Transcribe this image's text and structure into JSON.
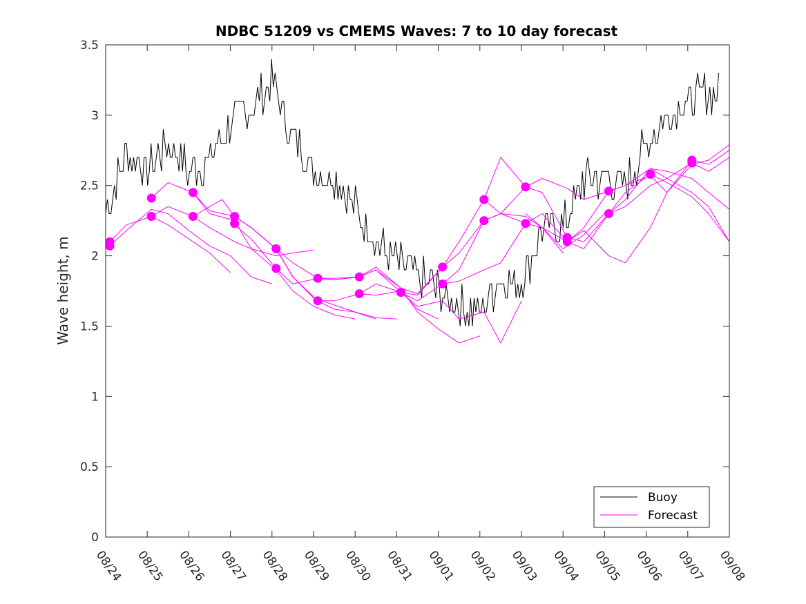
{
  "chart_data": {
    "type": "line",
    "title": "NDBC 51209 vs CMEMS Waves: 7 to 10 day forecast",
    "xlabel": "",
    "ylabel": "Wave height, m",
    "ylim": [
      0,
      3.5
    ],
    "yticks": [
      0,
      0.5,
      1,
      1.5,
      2,
      2.5,
      3,
      3.5
    ],
    "ytick_labels": [
      "0",
      "0.5",
      "1",
      "1.5",
      "2",
      "2.5",
      "3",
      "3.5"
    ],
    "xlim": [
      0,
      15
    ],
    "xtick_labels": [
      "08/24",
      "08/25",
      "08/26",
      "08/27",
      "08/28",
      "08/29",
      "08/30",
      "08/31",
      "09/01",
      "09/02",
      "09/03",
      "09/04",
      "09/05",
      "09/06",
      "09/07",
      "09/08"
    ],
    "legend": {
      "position": "bottom-right",
      "entries": [
        {
          "label": "Buoy",
          "color": "#000000"
        },
        {
          "label": "Forecast",
          "color": "#ff00ff"
        }
      ]
    },
    "colors": {
      "buoy": "#000000",
      "forecast": "#ff00ff",
      "axes": "#262626"
    },
    "series": [
      {
        "name": "Buoy",
        "x": [
          0,
          0.5,
          1,
          1.5,
          2,
          2.5,
          3,
          3.5,
          4,
          4.5,
          5,
          5.5,
          6,
          6.5,
          7,
          7.5,
          8,
          8.5,
          9,
          9.5,
          10,
          10.5,
          11,
          11.5,
          12,
          12.5,
          13,
          13.5,
          14,
          14.5
        ],
        "y": [
          2.3,
          2.75,
          2.6,
          2.8,
          2.6,
          2.7,
          2.95,
          3.05,
          3.25,
          2.85,
          2.6,
          2.55,
          2.35,
          2.1,
          1.95,
          1.85,
          1.75,
          1.65,
          1.6,
          1.85,
          1.8,
          2.2,
          2.2,
          2.55,
          2.55,
          2.5,
          2.8,
          3.0,
          3.1,
          3.15
        ],
        "noise": 0.14
      },
      {
        "name": "Forecast",
        "runs": [
          {
            "x": [
              0.1,
              0.5,
              1.1,
              1.5,
              2.0,
              2.5,
              3.0
            ],
            "y": [
              2.1,
              2.22,
              2.28,
              2.22,
              2.12,
              2.02,
              1.88
            ]
          },
          {
            "x": [
              0.1,
              0.5,
              1.1,
              1.5,
              2.0,
              2.5,
              3.0,
              3.5,
              4.0
            ],
            "y": [
              2.07,
              2.18,
              2.33,
              2.3,
              2.18,
              2.07,
              2.0,
              1.85,
              1.8
            ]
          },
          {
            "x": [
              1.1,
              1.5,
              2.1,
              2.5,
              3.1,
              3.5,
              4.1,
              4.5,
              5.0,
              5.5,
              6.0
            ],
            "y": [
              2.41,
              2.52,
              2.45,
              2.3,
              2.25,
              2.05,
              1.9,
              1.75,
              1.64,
              1.58,
              1.55
            ]
          },
          {
            "x": [
              1.1,
              1.5,
              2.1,
              2.5,
              3.1,
              3.5,
              4.1,
              4.5,
              5.0
            ],
            "y": [
              2.28,
              2.35,
              2.28,
              2.2,
              2.1,
              2.05,
              2.0,
              2.02,
              2.04
            ]
          },
          {
            "x": [
              2.1,
              2.5,
              3.1,
              3.5,
              4.1,
              4.5,
              5.1,
              5.5,
              6.0,
              6.5,
              7.0
            ],
            "y": [
              2.45,
              2.32,
              2.28,
              2.2,
              2.05,
              1.85,
              1.68,
              1.62,
              1.6,
              1.56,
              1.55
            ]
          },
          {
            "x": [
              2.1,
              2.5,
              2.8,
              3.1,
              3.5,
              4.1,
              4.5,
              5.0,
              5.5,
              6.0,
              6.5
            ],
            "y": [
              2.28,
              2.35,
              2.4,
              2.28,
              2.2,
              2.05,
              1.85,
              1.7,
              1.65,
              1.6,
              1.55
            ]
          },
          {
            "x": [
              3.1,
              3.5,
              4.1,
              4.5,
              5.1,
              5.5,
              6.1,
              6.5,
              7.1,
              7.5,
              8.0
            ],
            "y": [
              2.28,
              2.2,
              2.05,
              1.85,
              1.68,
              1.68,
              1.73,
              1.72,
              1.75,
              1.62,
              1.55
            ]
          },
          {
            "x": [
              3.1,
              3.5,
              4.1,
              4.5,
              5.1,
              5.5,
              6.1,
              6.5,
              7.1,
              7.5,
              8.0,
              8.5,
              9.0
            ],
            "y": [
              2.22,
              2.12,
              1.91,
              1.8,
              1.84,
              1.83,
              1.85,
              1.92,
              1.77,
              1.6,
              1.48,
              1.38,
              1.43
            ]
          },
          {
            "x": [
              4.1,
              4.5,
              5.1,
              5.5,
              6.1,
              6.5,
              7.1,
              7.5,
              8.1,
              8.5,
              9.1,
              9.5,
              10.0
            ],
            "y": [
              2.05,
              1.95,
              1.84,
              1.84,
              1.85,
              1.9,
              1.74,
              1.64,
              1.68,
              1.55,
              1.6,
              1.38,
              1.68
            ]
          },
          {
            "x": [
              5.1,
              5.5,
              6.1,
              6.5,
              7.1,
              7.5,
              8.1,
              8.5,
              9.1,
              9.5,
              10.1,
              10.5,
              11.0
            ],
            "y": [
              1.84,
              1.83,
              1.85,
              1.9,
              1.77,
              1.73,
              1.92,
              2.02,
              2.25,
              2.3,
              2.28,
              2.2,
              2.02
            ]
          },
          {
            "x": [
              6.1,
              6.5,
              7.1,
              7.5,
              8.1,
              8.5,
              9.1,
              9.5,
              10.1,
              10.5,
              11.0,
              11.5,
              12.0
            ],
            "y": [
              1.73,
              1.8,
              1.74,
              1.68,
              1.8,
              1.9,
              2.25,
              2.3,
              2.23,
              2.2,
              2.05,
              2.15,
              2.3
            ]
          },
          {
            "x": [
              7.1,
              7.5,
              8.1,
              8.5,
              9.1,
              9.5,
              10.1,
              10.5,
              11.1,
              11.5,
              12.1,
              12.5,
              13.1,
              13.5,
              14.1,
              14.5,
              15.0
            ],
            "y": [
              1.74,
              1.72,
              1.92,
              2.1,
              2.4,
              2.7,
              2.49,
              2.55,
              2.48,
              2.4,
              2.46,
              2.5,
              2.57,
              2.45,
              2.65,
              2.68,
              2.79
            ]
          },
          {
            "x": [
              8.1,
              8.5,
              9.1,
              9.5,
              10.1,
              10.5,
              11.1,
              11.5,
              12.1,
              12.5,
              13.1,
              13.5,
              14.1,
              14.5,
              15.0
            ],
            "y": [
              1.8,
              1.82,
              1.9,
              1.95,
              2.23,
              2.3,
              2.1,
              2.2,
              2.46,
              2.5,
              2.62,
              2.6,
              2.55,
              2.45,
              2.33
            ]
          },
          {
            "x": [
              9.1,
              9.5,
              10.1,
              10.5,
              11.1,
              11.5,
              12.1,
              12.5,
              13.1,
              13.5,
              14.1,
              14.5,
              15.0
            ],
            "y": [
              2.4,
              2.3,
              2.49,
              2.45,
              2.13,
              2.1,
              2.3,
              2.45,
              2.58,
              2.52,
              2.42,
              2.3,
              2.1
            ]
          },
          {
            "x": [
              10.1,
              10.5,
              11.1,
              11.5,
              12.1,
              12.5,
              13.1,
              13.5,
              14.1,
              14.5,
              15.0
            ],
            "y": [
              2.3,
              2.2,
              2.1,
              2.05,
              2.3,
              2.4,
              2.62,
              2.55,
              2.45,
              2.35,
              2.1
            ]
          },
          {
            "x": [
              11.1,
              11.5,
              12.1,
              12.5,
              13.1,
              13.5,
              14.1,
              14.5,
              15.0
            ],
            "y": [
              2.1,
              2.18,
              2.0,
              1.95,
              2.2,
              2.45,
              2.68,
              2.65,
              2.75
            ]
          },
          {
            "x": [
              12.1,
              12.5,
              13.1,
              13.5,
              14.1,
              14.5,
              15.0
            ],
            "y": [
              2.3,
              2.35,
              2.5,
              2.55,
              2.66,
              2.6,
              2.7
            ]
          }
        ],
        "markers": [
          [
            0.1,
            2.1
          ],
          [
            0.1,
            2.07
          ],
          [
            1.1,
            2.41
          ],
          [
            1.1,
            2.28
          ],
          [
            2.1,
            2.45
          ],
          [
            2.1,
            2.28
          ],
          [
            3.1,
            2.28
          ],
          [
            3.1,
            2.23
          ],
          [
            4.1,
            2.05
          ],
          [
            4.1,
            1.91
          ],
          [
            5.1,
            1.84
          ],
          [
            5.1,
            1.68
          ],
          [
            6.1,
            1.85
          ],
          [
            6.1,
            1.73
          ],
          [
            7.1,
            1.74
          ],
          [
            7.1,
            1.74
          ],
          [
            8.1,
            1.92
          ],
          [
            8.1,
            1.8
          ],
          [
            9.1,
            2.4
          ],
          [
            9.1,
            2.25
          ],
          [
            10.1,
            2.49
          ],
          [
            10.1,
            2.23
          ],
          [
            11.1,
            2.13
          ],
          [
            11.1,
            2.1
          ],
          [
            12.1,
            2.46
          ],
          [
            12.1,
            2.3
          ],
          [
            13.1,
            2.58
          ],
          [
            13.1,
            2.58
          ],
          [
            14.1,
            2.68
          ],
          [
            14.1,
            2.66
          ]
        ]
      }
    ]
  }
}
